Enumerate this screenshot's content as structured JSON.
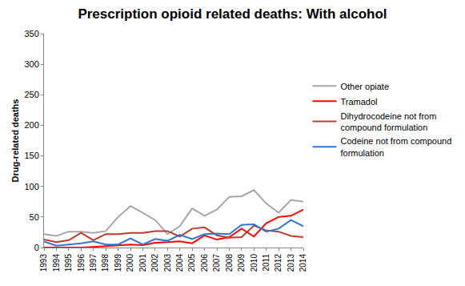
{
  "chart_data": {
    "type": "line",
    "title": "Prescription opioid related deaths: With alcohol",
    "y_label": "Drug-related deaths",
    "x": [
      1993,
      1994,
      1995,
      1996,
      1997,
      1998,
      1999,
      2000,
      2001,
      2002,
      2003,
      2004,
      2005,
      2006,
      2007,
      2008,
      2009,
      2010,
      2011,
      2012,
      2013,
      2014
    ],
    "xlim": [
      1993,
      2014
    ],
    "xticks": [
      1993,
      1994,
      1995,
      1996,
      1997,
      1998,
      1999,
      2000,
      2001,
      2002,
      2003,
      2004,
      2005,
      2006,
      2007,
      2008,
      2009,
      2010,
      2011,
      2012,
      2013,
      2014
    ],
    "ylim": [
      0,
      350
    ],
    "yticks": [
      0,
      50,
      100,
      150,
      200,
      250,
      300,
      350
    ],
    "grid": false,
    "legend": "right",
    "series": [
      {
        "name": "Other opiate",
        "color": "#a6a6a6",
        "values": [
          22,
          19,
          26,
          26,
          24,
          27,
          50,
          68,
          57,
          45,
          22,
          35,
          64,
          52,
          62,
          83,
          84,
          94,
          72,
          57,
          78,
          75
        ]
      },
      {
        "name": "Tramadol",
        "color": "#ff0000",
        "values": [
          0,
          0,
          0,
          0,
          1,
          2,
          3,
          5,
          4,
          8,
          9,
          10,
          7,
          20,
          13,
          17,
          31,
          18,
          40,
          50,
          52,
          62
        ]
      },
      {
        "name": "Dihydrocodeine not from compound formulation",
        "color": "#c0392b",
        "values": [
          13,
          9,
          12,
          24,
          12,
          22,
          22,
          24,
          24,
          27,
          27,
          18,
          31,
          33,
          20,
          16,
          17,
          36,
          28,
          26,
          19,
          17
        ]
      },
      {
        "name": "Codeine not from compound formulation",
        "color": "#2e75d6",
        "values": [
          10,
          3,
          5,
          7,
          10,
          5,
          5,
          15,
          5,
          14,
          11,
          21,
          14,
          22,
          23,
          22,
          37,
          38,
          26,
          31,
          45,
          35
        ]
      }
    ]
  }
}
